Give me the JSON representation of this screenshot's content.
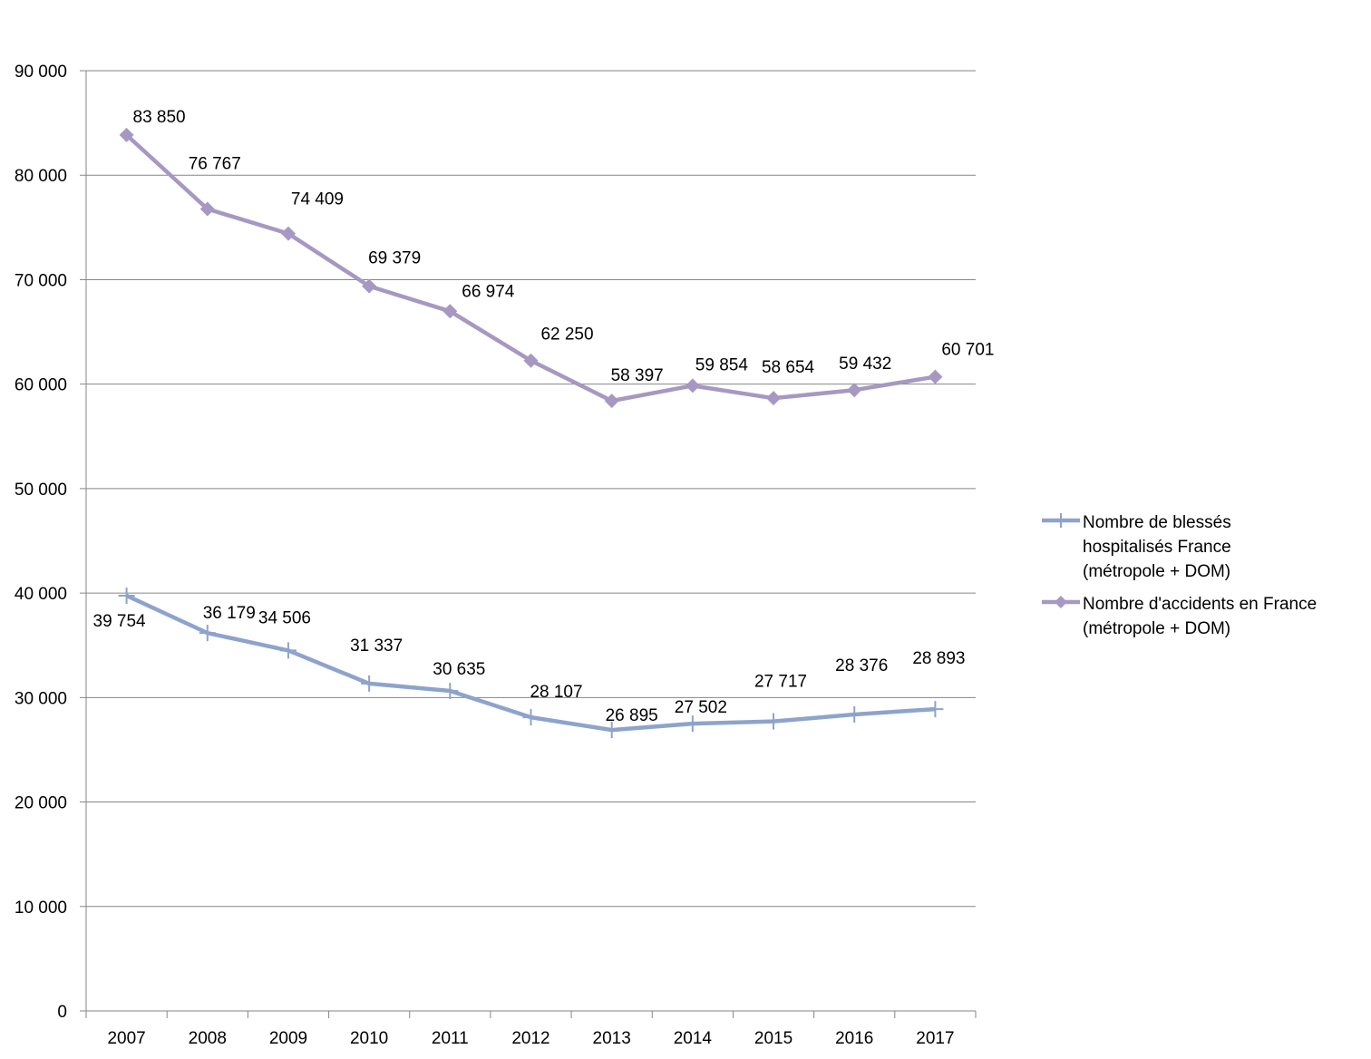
{
  "chart_data": {
    "type": "line",
    "title": "",
    "xlabel": "",
    "ylabel": "",
    "categories": [
      "2007",
      "2008",
      "2009",
      "2010",
      "2011",
      "2012",
      "2013",
      "2014",
      "2015",
      "2016",
      "2017"
    ],
    "ylim": [
      0,
      90000
    ],
    "yticks": [
      0,
      10000,
      20000,
      30000,
      40000,
      50000,
      60000,
      70000,
      80000,
      90000
    ],
    "ytick_labels": [
      "0",
      "10 000",
      "20 000",
      "30 000",
      "40 000",
      "50 000",
      "60 000",
      "70 000",
      "80 000",
      "90 000"
    ],
    "grid": true,
    "legend_position": "right",
    "series": [
      {
        "name": "Nombre de blessés hospitalisés France (métropole + DOM)",
        "legend_lines": [
          "Nombre de blessés",
          "hospitalisés France",
          "(métropole + DOM)"
        ],
        "color": "#8EA3CC",
        "marker": "plus",
        "values": [
          39754,
          36179,
          34506,
          31337,
          30635,
          28107,
          26895,
          27502,
          27717,
          28376,
          28893
        ],
        "labels": [
          "39 754",
          "36 179",
          "34 506",
          "31 337",
          "30 635",
          "28 107",
          "26 895",
          "27 502",
          "27 717",
          "28 376",
          "28 893"
        ]
      },
      {
        "name": "Nombre d'accidents en France (métropole + DOM)",
        "legend_lines": [
          "Nombre d'accidents en France",
          "(métropole + DOM)"
        ],
        "color": "#A698C2",
        "marker": "diamond",
        "values": [
          83850,
          76767,
          74409,
          69379,
          66974,
          62250,
          58397,
          59854,
          58654,
          59432,
          60701
        ],
        "labels": [
          "83 850",
          "76 767",
          "74 409",
          "69 379",
          "66 974",
          "62 250",
          "58 397",
          "59 854",
          "58 654",
          "59 432",
          "60 701"
        ]
      }
    ]
  }
}
